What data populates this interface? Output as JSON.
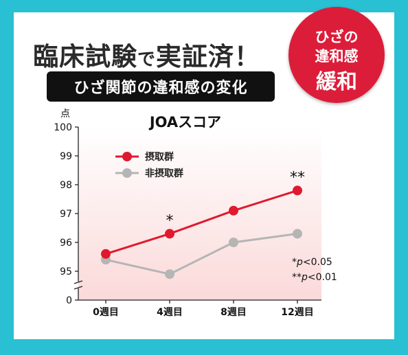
{
  "header": {
    "headline_a": "臨床試験",
    "headline_b": "で",
    "headline_c": "実証済！",
    "subtitle": "ひざ関節の違和感の変化"
  },
  "badge": {
    "line1": "ひざの",
    "line2": "違和感",
    "line3": "緩和"
  },
  "colors": {
    "page_background": "#29c0d3",
    "badge": "#dc1d3a",
    "intake_series": "#e0192e",
    "non_intake_series": "#b5b5b5"
  },
  "chart_data": {
    "type": "line",
    "title": "JOAスコア",
    "ylabel": "点",
    "categories": [
      "0週目",
      "4週目",
      "8週目",
      "12週目"
    ],
    "yticks": [
      "0",
      "95",
      "96",
      "97",
      "98",
      "99",
      "100"
    ],
    "ylim": [
      95,
      100
    ],
    "y_axis_break": true,
    "legend_position": "top-left",
    "series": [
      {
        "name": "摂取群",
        "color": "#e0192e",
        "values": [
          95.6,
          96.3,
          97.1,
          97.8
        ]
      },
      {
        "name": "非摂取群",
        "color": "#b5b5b5",
        "values": [
          95.4,
          94.9,
          96.0,
          96.3
        ]
      }
    ],
    "annotations": [
      {
        "category": "4週目",
        "text": "*"
      },
      {
        "category": "12週目",
        "text": "**"
      }
    ],
    "notes": [
      {
        "mark": "*",
        "p": "p",
        "text": "<0.05"
      },
      {
        "mark": "**",
        "p": "p",
        "text": "<0.01"
      }
    ]
  }
}
